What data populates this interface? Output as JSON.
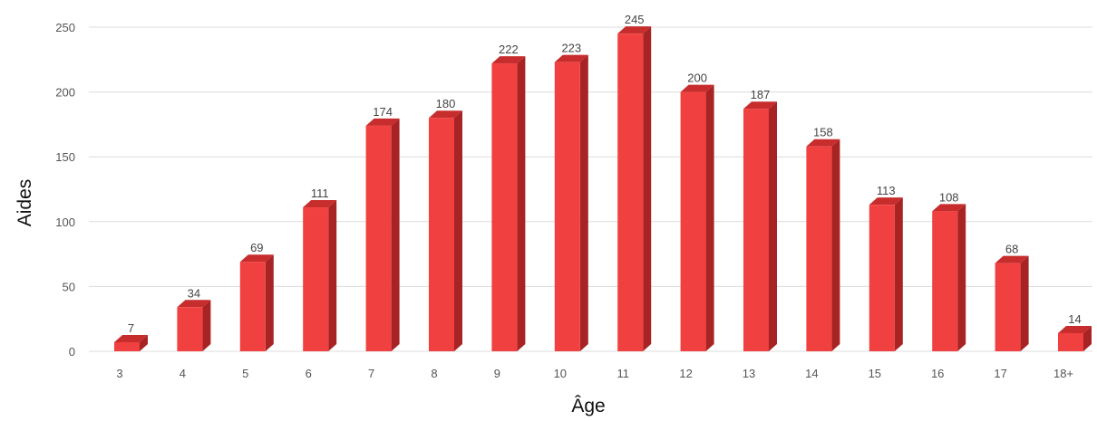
{
  "chart_data": {
    "type": "bar",
    "style": "3d-column",
    "title": "",
    "xlabel": "Âge",
    "ylabel": "Aides",
    "categories": [
      "3",
      "4",
      "5",
      "6",
      "7",
      "8",
      "9",
      "10",
      "11",
      "12",
      "13",
      "14",
      "15",
      "16",
      "17",
      "18+"
    ],
    "values": [
      7,
      34,
      69,
      111,
      174,
      180,
      222,
      223,
      245,
      200,
      187,
      158,
      113,
      108,
      68,
      14
    ],
    "data_labels": [
      "7",
      "34",
      "69",
      "111",
      "174",
      "180",
      "222",
      "223",
      "245",
      "200",
      "187",
      "158",
      "113",
      "108",
      "68",
      "14"
    ],
    "ylim": [
      0,
      250
    ],
    "yticks": [
      0,
      50,
      100,
      150,
      200,
      250
    ],
    "ytick_labels": [
      "0",
      "50",
      "100",
      "150",
      "200",
      "250"
    ],
    "grid": true,
    "legend": "none",
    "colors": {
      "front": "#f0403f",
      "side": "#a82323",
      "top": "#c72d2d"
    }
  }
}
